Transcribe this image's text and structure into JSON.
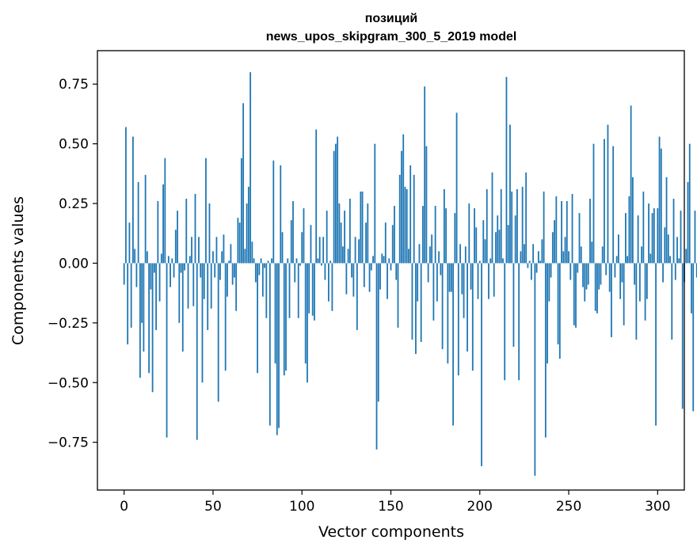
{
  "chart_data": {
    "type": "bar",
    "title_line1": "позиций",
    "title_line2": "news_upos_skipgram_300_5_2019 model",
    "xlabel": "Vector components",
    "ylabel": "Components values",
    "xlim": [
      -15,
      315
    ],
    "ylim": [
      -0.95,
      0.89
    ],
    "xticks": [
      0,
      50,
      100,
      150,
      200,
      250,
      300
    ],
    "yticks": [
      -0.75,
      -0.5,
      -0.25,
      0.0,
      0.25,
      0.5,
      0.75
    ],
    "xtick_labels": [
      "0",
      "50",
      "100",
      "150",
      "200",
      "250",
      "300"
    ],
    "ytick_labels": [
      "−0.75",
      "−0.50",
      "−0.25",
      "0.00",
      "0.25",
      "0.50",
      "0.75"
    ],
    "bar_color": "#1f77b4",
    "values": [
      -0.09,
      0.57,
      -0.34,
      0.17,
      -0.27,
      0.53,
      0.06,
      -0.1,
      0.34,
      -0.48,
      -0.25,
      -0.37,
      0.37,
      0.05,
      -0.46,
      -0.11,
      -0.54,
      -0.04,
      -0.28,
      0.26,
      -0.16,
      0.04,
      0.33,
      0.44,
      -0.73,
      0.03,
      -0.1,
      0.02,
      -0.06,
      0.14,
      0.22,
      -0.25,
      -0.04,
      -0.37,
      -0.03,
      0.27,
      -0.19,
      0.03,
      0.11,
      -0.18,
      0.29,
      -0.74,
      0.11,
      -0.06,
      -0.5,
      -0.15,
      0.44,
      -0.28,
      0.25,
      -0.19,
      0.05,
      -0.06,
      0.11,
      -0.58,
      -0.07,
      0.05,
      0.12,
      -0.45,
      -0.14,
      0.01,
      0.08,
      -0.09,
      -0.06,
      -0.2,
      0.19,
      0.17,
      0.44,
      0.67,
      0.06,
      0.25,
      0.32,
      0.8,
      0.09,
      0.02,
      -0.08,
      -0.46,
      -0.05,
      0.02,
      -0.14,
      -0.02,
      -0.23,
      0.01,
      -0.68,
      0.02,
      0.43,
      -0.42,
      -0.72,
      -0.69,
      0.41,
      0.13,
      -0.47,
      -0.45,
      0.02,
      -0.23,
      0.18,
      0.26,
      -0.08,
      0.02,
      -0.23,
      -0.01,
      0.13,
      0.23,
      -0.42,
      -0.5,
      -0.21,
      0.16,
      -0.22,
      -0.24,
      0.56,
      0.02,
      0.11,
      -0.01,
      0.11,
      -0.07,
      0.22,
      -0.16,
      0.01,
      -0.2,
      0.47,
      0.5,
      0.53,
      0.25,
      0.17,
      0.07,
      0.22,
      -0.13,
      0.06,
      0.27,
      -0.06,
      -0.14,
      0.11,
      -0.28,
      0.1,
      0.3,
      0.3,
      -0.1,
      0.17,
      0.25,
      -0.12,
      -0.03,
      0.03,
      0.5,
      -0.78,
      -0.58,
      -0.11,
      0.04,
      0.03,
      0.17,
      -0.15,
      0.02,
      -0.03,
      0.16,
      0.24,
      -0.07,
      -0.27,
      0.37,
      0.47,
      0.54,
      0.32,
      0.31,
      0.06,
      0.41,
      -0.32,
      0.37,
      -0.38,
      -0.16,
      0.08,
      -0.33,
      0.24,
      0.74,
      0.49,
      -0.08,
      0.07,
      0.12,
      -0.24,
      0.24,
      -0.16,
      0.05,
      -0.05,
      -0.36,
      0.31,
      0.23,
      -0.42,
      -0.12,
      -0.12,
      -0.68,
      0.21,
      0.63,
      -0.47,
      0.08,
      -0.13,
      -0.23,
      0.07,
      -0.37,
      0.25,
      -0.11,
      -0.45,
      0.23,
      0.15,
      -0.15,
      0.01,
      -0.85,
      0.18,
      0.1,
      0.31,
      -0.15,
      0.02,
      0.38,
      -0.14,
      0.13,
      0.2,
      0.14,
      0.31,
      0.02,
      -0.49,
      0.78,
      0.16,
      0.58,
      0.3,
      -0.35,
      0.2,
      0.31,
      -0.49,
      0.05,
      0.32,
      0.08,
      0.38,
      -0.02,
      0.01,
      -0.07,
      0.08,
      -0.89,
      -0.04,
      0.05,
      0.01,
      0.1,
      0.3,
      -0.73,
      -0.42,
      -0.16,
      -0.06,
      0.13,
      0.18,
      0.28,
      -0.34,
      -0.4,
      0.26,
      0.05,
      0.11,
      0.26,
      0.05,
      -0.07,
      0.29,
      -0.26,
      -0.27,
      -0.04,
      0.21,
      0.07,
      -0.1,
      -0.16,
      -0.11,
      -0.09,
      0.27,
      0.09,
      0.5,
      -0.2,
      -0.21,
      -0.11,
      -0.09,
      0.07,
      0.52,
      -0.05,
      0.58,
      -0.12,
      -0.31,
      0.49,
      -0.06,
      0.03,
      0.12,
      -0.15,
      -0.08,
      -0.26,
      0.21,
      0.03,
      0.28,
      0.66,
      0.36,
      -0.09,
      -0.32,
      0.2,
      -0.16,
      0.07,
      0.3,
      -0.24,
      -0.15,
      0.25,
      0.04,
      0.21,
      0.23,
      -0.68,
      0.23,
      0.53,
      0.48,
      -0.08,
      0.15,
      0.36,
      0.12,
      0.03,
      -0.32,
      0.27,
      -0.07,
      0.11,
      0.02,
      0.22,
      -0.61,
      -0.08,
      0.06,
      0.34,
      0.5,
      -0.21,
      -0.62,
      0.22,
      -0.06,
      0.02,
      -0.09
    ]
  }
}
